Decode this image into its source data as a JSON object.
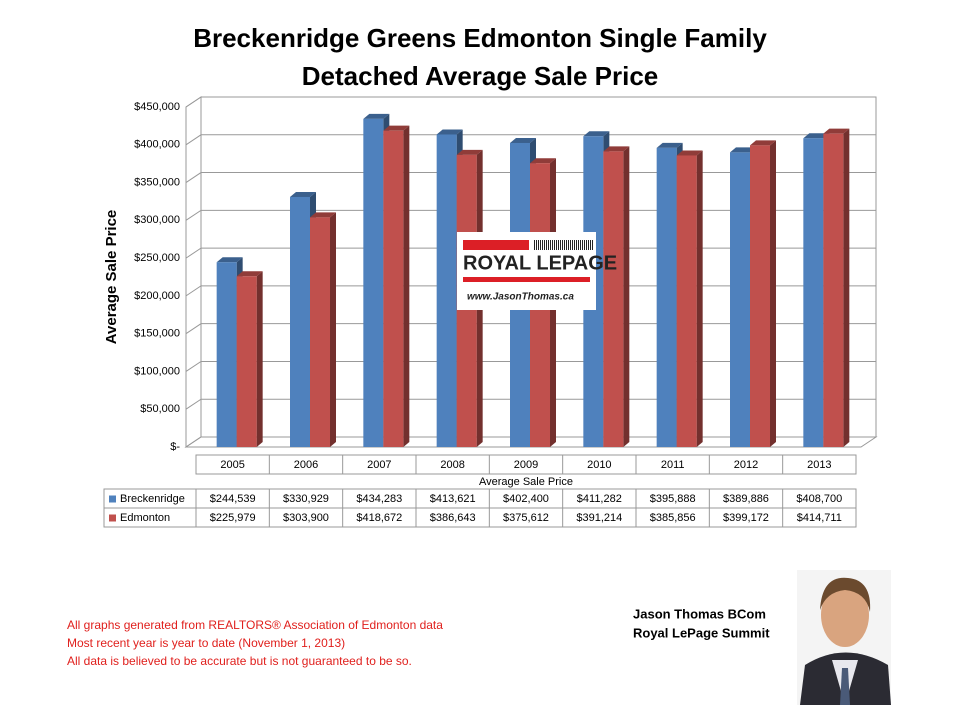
{
  "chart_data": {
    "type": "bar3d",
    "title": [
      "Breckenridge Greens Edmonton Single Family",
      "Detached Average Sale Price"
    ],
    "y_label": "Average Sale Price",
    "x_label": "Average Sale Price",
    "categories": [
      "2005",
      "2006",
      "2007",
      "2008",
      "2009",
      "2010",
      "2011",
      "2012",
      "2013"
    ],
    "series": [
      {
        "name": "Breckenridge",
        "color": "#4f81bd",
        "values": [
          244539,
          330929,
          434283,
          413621,
          402400,
          411282,
          395888,
          389886,
          408700
        ],
        "value_labels": [
          "$244,539",
          "$330,929",
          "$434,283",
          "$413,621",
          "$402,400",
          "$411,282",
          "$395,888",
          "$389,886",
          "$408,700"
        ]
      },
      {
        "name": "Edmonton",
        "color": "#c0504d",
        "values": [
          225979,
          303900,
          418672,
          386643,
          375612,
          391214,
          385856,
          399172,
          414711
        ],
        "value_labels": [
          "$225,979",
          "$303,900",
          "$418,672",
          "$386,643",
          "$375,612",
          "$391,214",
          "$385,856",
          "$399,172",
          "$414,711"
        ]
      }
    ],
    "ylim": [
      0,
      450000
    ],
    "yticks": [
      {
        "value": 0,
        "label": "$-"
      },
      {
        "value": 50000,
        "label": "$50,000"
      },
      {
        "value": 100000,
        "label": "$100,000"
      },
      {
        "value": 150000,
        "label": "$150,000"
      },
      {
        "value": 200000,
        "label": "$200,000"
      },
      {
        "value": 250000,
        "label": "$250,000"
      },
      {
        "value": 300000,
        "label": "$300,000"
      },
      {
        "value": 350000,
        "label": "$350,000"
      },
      {
        "value": 400000,
        "label": "$400,000"
      },
      {
        "value": 450000,
        "label": "$450,000"
      }
    ],
    "grid": true,
    "logo": {
      "brand": "ROYAL LEPAGE",
      "url": "www.JasonThomas.ca"
    },
    "notes": [
      "All graphs generated from REALTORS® Association of Edmonton data",
      "Most recent year is year to date (November 1, 2013)",
      "All data is believed to be accurate but is not guaranteed to be so."
    ],
    "author": [
      "Jason Thomas BCom",
      "Royal LePage Summit"
    ]
  }
}
